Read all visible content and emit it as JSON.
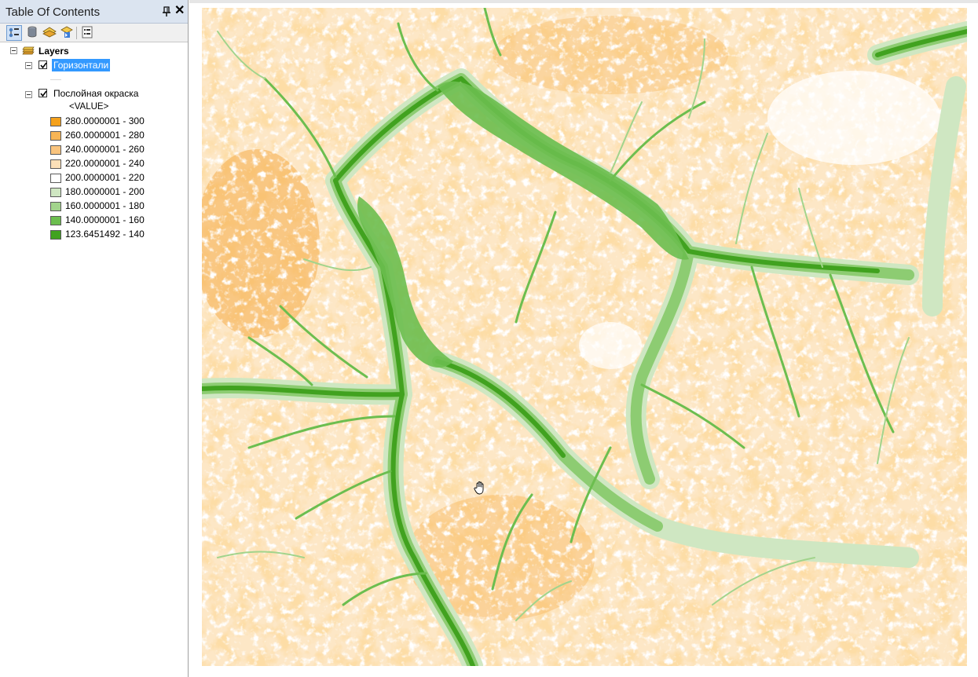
{
  "toc": {
    "title": "Table Of Contents",
    "pin_icon": "pin-icon",
    "close_icon": "close-icon",
    "close_glyph": "✕",
    "toolbar": [
      {
        "name": "list-by-drawing-order",
        "icon": "layers-order-icon",
        "active": true
      },
      {
        "name": "list-by-source",
        "icon": "database-icon",
        "active": false
      },
      {
        "name": "list-by-visibility",
        "icon": "visibility-icon",
        "active": false
      },
      {
        "name": "list-by-selection",
        "icon": "selection-icon",
        "active": false
      },
      {
        "name": "options",
        "icon": "options-icon",
        "active": false
      }
    ],
    "data_frame": {
      "label": "Layers",
      "expanded": true
    },
    "layers": [
      {
        "label": "Горизонтали",
        "checked": true,
        "selected": true,
        "expanded": true
      },
      {
        "label": "Послойная окраска",
        "checked": true,
        "selected": false,
        "expanded": true,
        "field": "<VALUE>"
      }
    ],
    "legend": [
      {
        "label": "280.0000001 - 300",
        "color": "#f5a11b"
      },
      {
        "label": "260.0000001 - 280",
        "color": "#f7b555"
      },
      {
        "label": "240.0000001 - 260",
        "color": "#f9c47e"
      },
      {
        "label": "220.0000001 - 240",
        "color": "#fce0b8"
      },
      {
        "label": "200.0000001 - 220",
        "color": "#ffffff"
      },
      {
        "label": "180.0000001 - 200",
        "color": "#cfe7c2"
      },
      {
        "label": "160.0000001 - 180",
        "color": "#a2d48c"
      },
      {
        "label": "140.0000001 - 160",
        "color": "#6cbe4f"
      },
      {
        "label": "123.6451492 - 140",
        "color": "#41a21f"
      }
    ]
  },
  "map": {
    "cursor_icon": "hand-pan-icon"
  }
}
